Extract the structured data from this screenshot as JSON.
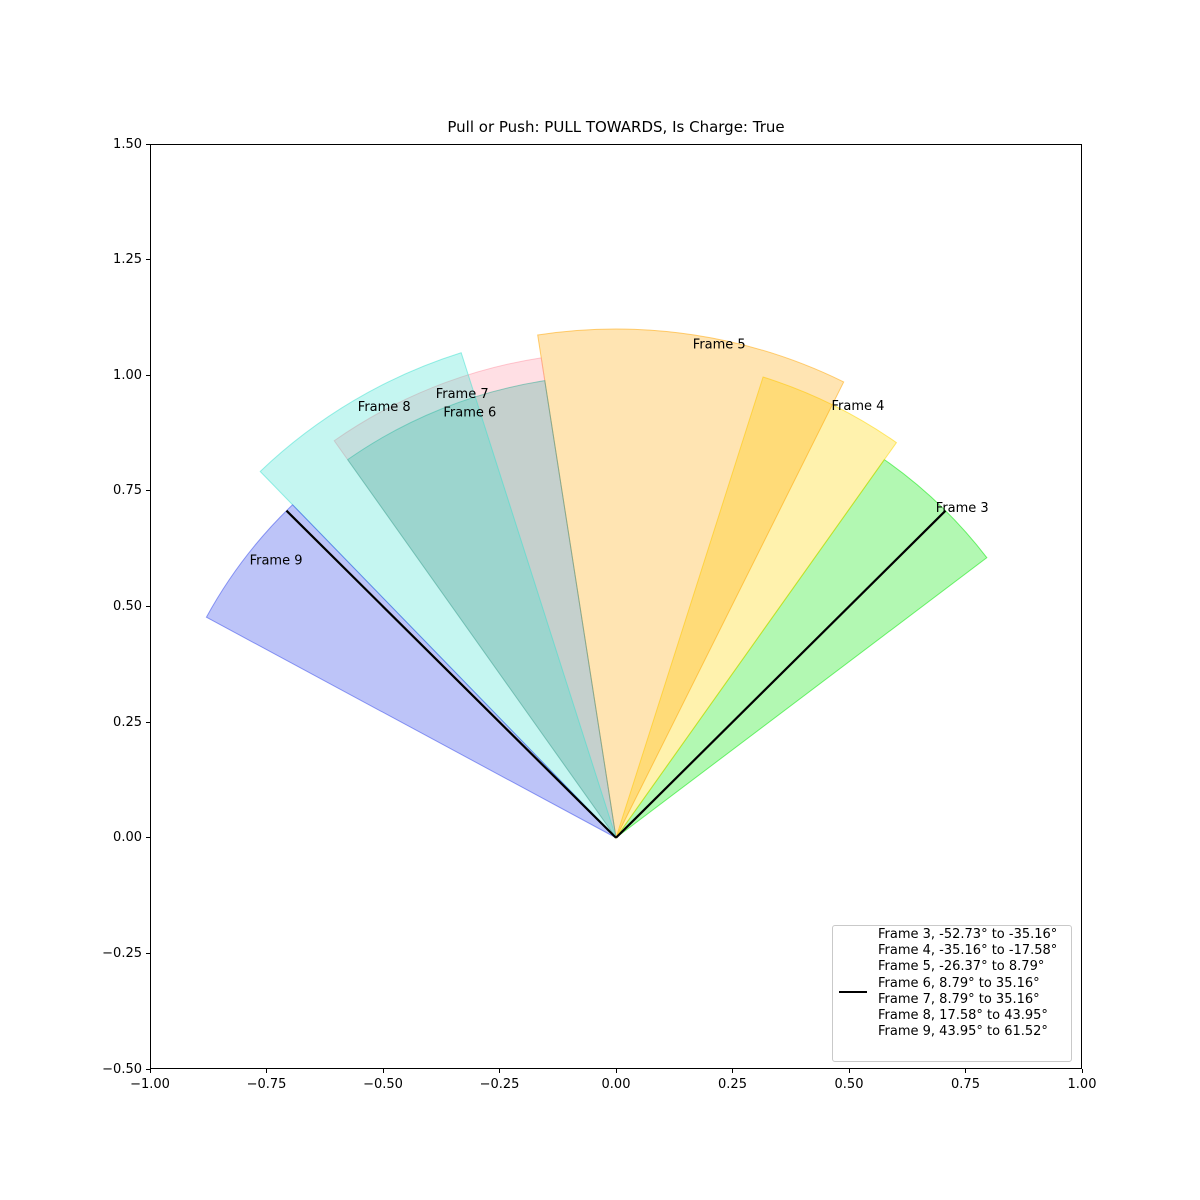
{
  "title": "Pull or Push: PULL TOWARDS, Is Charge: True",
  "axes": {
    "x": {
      "range": [
        -1.0,
        1.0
      ],
      "ticks": [
        {
          "v": -1.0,
          "label": "−1.00"
        },
        {
          "v": -0.75,
          "label": "−0.75"
        },
        {
          "v": -0.5,
          "label": "−0.50"
        },
        {
          "v": -0.25,
          "label": "−0.25"
        },
        {
          "v": 0.0,
          "label": "0.00"
        },
        {
          "v": 0.25,
          "label": "0.25"
        },
        {
          "v": 0.5,
          "label": "0.50"
        },
        {
          "v": 0.75,
          "label": "0.75"
        },
        {
          "v": 1.0,
          "label": "1.00"
        }
      ]
    },
    "y": {
      "range": [
        -0.5,
        1.5
      ],
      "ticks": [
        {
          "v": -0.5,
          "label": "−0.50"
        },
        {
          "v": -0.25,
          "label": "−0.25"
        },
        {
          "v": 0.0,
          "label": "0.00"
        },
        {
          "v": 0.25,
          "label": "0.25"
        },
        {
          "v": 0.5,
          "label": "0.50"
        },
        {
          "v": 0.75,
          "label": "0.75"
        },
        {
          "v": 1.0,
          "label": "1.00"
        },
        {
          "v": 1.25,
          "label": "1.25"
        },
        {
          "v": 1.5,
          "label": "1.50"
        }
      ]
    }
  },
  "chart_data": {
    "type": "pie",
    "subtype": "wedge-fan",
    "title": "Pull or Push: PULL TOWARDS, Is Charge: True",
    "angle_convention": "degrees measured from +y (up), positive counterclockwise",
    "origin": {
      "x": 0.0,
      "y": 0.0
    },
    "xlim": [
      -1.0,
      1.0
    ],
    "ylim": [
      -0.5,
      1.5
    ],
    "grid": false,
    "wedges": [
      {
        "label": "Frame 3",
        "start_deg": -52.73,
        "end_deg": -35.16,
        "radius": 1.0,
        "label_radius": 0.989,
        "color": "#00e800",
        "opacity": 0.3,
        "draw_order": 0
      },
      {
        "label": "Frame 4",
        "start_deg": -35.16,
        "end_deg": -17.58,
        "radius": 1.045,
        "label_radius": 1.041,
        "color": "#ffd700",
        "opacity": 0.32,
        "draw_order": 1
      },
      {
        "label": "Frame 5",
        "start_deg": -26.37,
        "end_deg": 8.79,
        "radius": 1.1,
        "label_radius": 1.078,
        "color": "#ffa500",
        "opacity": 0.3,
        "draw_order": 2
      },
      {
        "label": "Frame 6",
        "start_deg": 8.79,
        "end_deg": 35.16,
        "radius": 1.0,
        "label_radius": 0.99,
        "color": "#28aa91",
        "opacity": 0.27,
        "draw_order": 4
      },
      {
        "label": "Frame 7",
        "start_deg": 8.79,
        "end_deg": 35.16,
        "radius": 1.05,
        "label_radius": 1.034,
        "color": "#ff96a5",
        "opacity": 0.3,
        "draw_order": 3
      },
      {
        "label": "Frame 8",
        "start_deg": 17.58,
        "end_deg": 43.95,
        "radius": 1.1,
        "label_radius": 1.083,
        "color": "#40e0d0",
        "opacity": 0.3,
        "draw_order": 5
      },
      {
        "label": "Frame 9",
        "start_deg": 43.95,
        "end_deg": 61.52,
        "radius": 1.0,
        "label_radius": 0.988,
        "color": "#4155eb",
        "opacity": 0.35,
        "draw_order": 6
      }
    ],
    "lines": [
      {
        "x1": 0,
        "y1": 0,
        "x2": -0.7071,
        "y2": 0.7071,
        "color": "#000000",
        "width": 2.2
      },
      {
        "x1": 0,
        "y1": 0,
        "x2": 0.7071,
        "y2": 0.7071,
        "color": "#000000",
        "width": 2.2
      }
    ],
    "legend": {
      "position": "lower right",
      "handle": "black-line",
      "entries": [
        "Frame 3, -52.73° to -35.16°",
        "Frame 4, -35.16° to -17.58°",
        "Frame 5, -26.37° to 8.79°",
        "Frame 6, 8.79° to 35.16°",
        "Frame 7, 8.79° to 35.16°",
        "Frame 8, 17.58° to 43.95°",
        "Frame 9, 43.95° to 61.52°"
      ]
    }
  }
}
